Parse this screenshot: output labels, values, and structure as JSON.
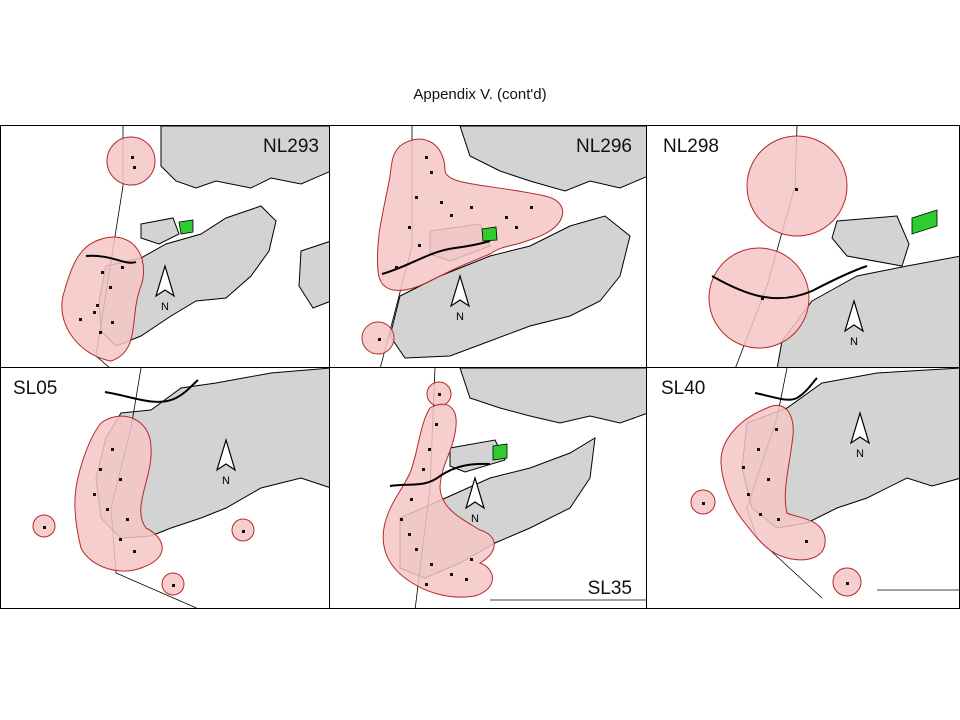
{
  "page": {
    "title": "Appendix V.  (cont'd)"
  },
  "legend_colors": {
    "land": "#d3d3d3",
    "buffer_fill": "#f6c6c6",
    "buffer_stroke": "#b52a2a",
    "site": "#2ecc2e",
    "points": "#111111"
  },
  "north_arrow_label": "N",
  "panels": [
    {
      "id": "NL293",
      "label": "NL293"
    },
    {
      "id": "NL296",
      "label": "NL296"
    },
    {
      "id": "NL298",
      "label": "NL298"
    },
    {
      "id": "SL05",
      "label": "SL05"
    },
    {
      "id": "SL35",
      "label": "SL35"
    },
    {
      "id": "SL40",
      "label": "SL40"
    }
  ]
}
